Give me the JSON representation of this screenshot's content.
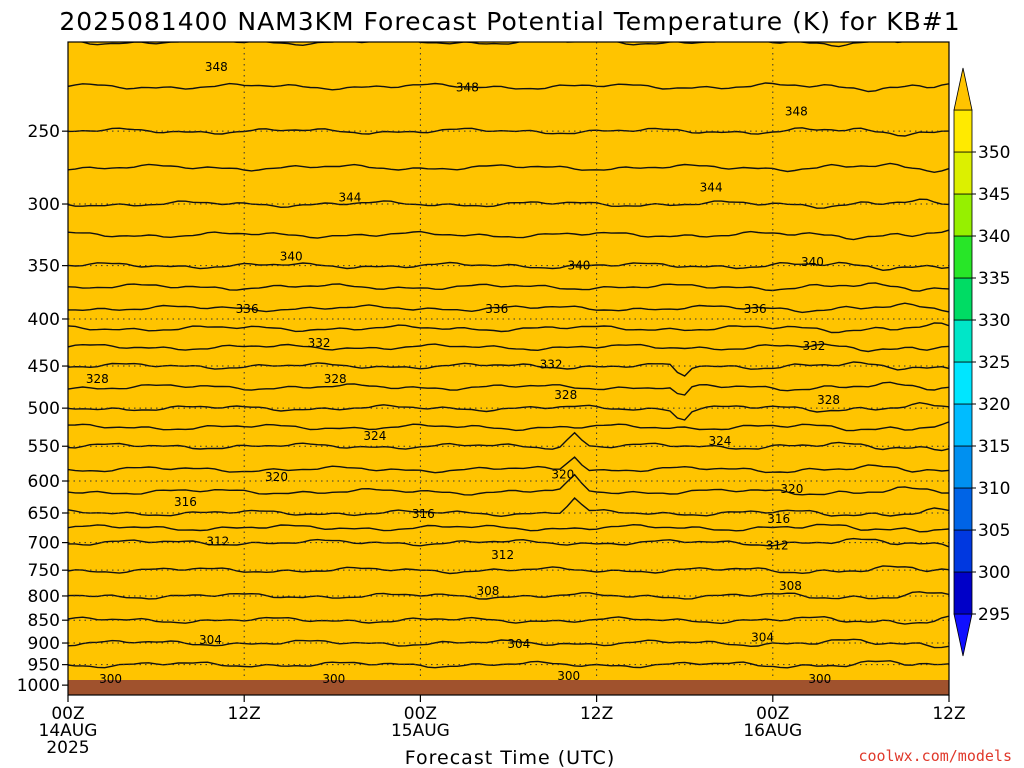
{
  "chart_data": {
    "type": "contour",
    "title": "2025081400 NAM3KM Forecast Potential Temperature (K) for KB#1",
    "xlabel": "Forecast Time (UTC)",
    "ylabel": "",
    "credit": "coolwx.com/models",
    "x_ticks": [
      {
        "hours": 0,
        "lines": [
          "00Z",
          "14AUG",
          "2025"
        ]
      },
      {
        "hours": 12,
        "lines": [
          "12Z"
        ]
      },
      {
        "hours": 24,
        "lines": [
          "00Z",
          "15AUG"
        ]
      },
      {
        "hours": 36,
        "lines": [
          "12Z"
        ]
      },
      {
        "hours": 48,
        "lines": [
          "00Z",
          "16AUG"
        ]
      },
      {
        "hours": 60,
        "lines": [
          "12Z"
        ]
      }
    ],
    "xlim": [
      0,
      60
    ],
    "y_scale": "log-pressure",
    "ylim": [
      1025,
      200
    ],
    "y_ticks": [
      250,
      300,
      350,
      400,
      450,
      500,
      550,
      600,
      650,
      700,
      750,
      800,
      850,
      900,
      950,
      1000
    ],
    "colorbar": {
      "levels": [
        295,
        300,
        305,
        310,
        315,
        320,
        325,
        330,
        335,
        340,
        345,
        350
      ],
      "labels": [
        295,
        300,
        305,
        310,
        315,
        320,
        325,
        330,
        335,
        340,
        345,
        350
      ],
      "colors": [
        "#1010ff",
        "#0000c8",
        "#0038e0",
        "#0064e6",
        "#0090f0",
        "#00bcff",
        "#00e6ff",
        "#00e6c8",
        "#00dc64",
        "#28e628",
        "#96f000",
        "#dcf000",
        "#ffea00",
        "#ffc400"
      ]
    },
    "profile": [
      {
        "pressure": 1000,
        "theta": 300
      },
      {
        "pressure": 950,
        "theta": 302
      },
      {
        "pressure": 900,
        "theta": 304
      },
      {
        "pressure": 850,
        "theta": 306
      },
      {
        "pressure": 800,
        "theta": 308
      },
      {
        "pressure": 750,
        "theta": 310
      },
      {
        "pressure": 700,
        "theta": 312
      },
      {
        "pressure": 650,
        "theta": 316
      },
      {
        "pressure": 600,
        "theta": 319
      },
      {
        "pressure": 550,
        "theta": 322
      },
      {
        "pressure": 500,
        "theta": 326
      },
      {
        "pressure": 450,
        "theta": 330
      },
      {
        "pressure": 400,
        "theta": 335
      },
      {
        "pressure": 350,
        "theta": 340
      },
      {
        "pressure": 300,
        "theta": 344
      },
      {
        "pressure": 250,
        "theta": 348
      },
      {
        "pressure": 200,
        "theta": 352
      }
    ],
    "contour_labels": [
      {
        "value": 348,
        "hours": 10.1,
        "pressure": 213
      },
      {
        "value": 348,
        "hours": 27.2,
        "pressure": 224
      },
      {
        "value": 348,
        "hours": 49.6,
        "pressure": 238
      },
      {
        "value": 344,
        "hours": 19.2,
        "pressure": 295
      },
      {
        "value": 344,
        "hours": 43.8,
        "pressure": 288
      },
      {
        "value": 340,
        "hours": 15.2,
        "pressure": 342
      },
      {
        "value": 340,
        "hours": 34.8,
        "pressure": 350
      },
      {
        "value": 340,
        "hours": 50.7,
        "pressure": 347
      },
      {
        "value": 336,
        "hours": 12.2,
        "pressure": 390
      },
      {
        "value": 336,
        "hours": 29.2,
        "pressure": 390
      },
      {
        "value": 336,
        "hours": 46.8,
        "pressure": 390
      },
      {
        "value": 332,
        "hours": 17.1,
        "pressure": 425
      },
      {
        "value": 332,
        "hours": 32.9,
        "pressure": 448
      },
      {
        "value": 332,
        "hours": 50.8,
        "pressure": 428
      },
      {
        "value": 328,
        "hours": 2.0,
        "pressure": 465
      },
      {
        "value": 328,
        "hours": 18.2,
        "pressure": 465
      },
      {
        "value": 328,
        "hours": 33.9,
        "pressure": 484
      },
      {
        "value": 328,
        "hours": 51.8,
        "pressure": 490
      },
      {
        "value": 324,
        "hours": 20.9,
        "pressure": 536
      },
      {
        "value": 324,
        "hours": 44.4,
        "pressure": 543
      },
      {
        "value": 320,
        "hours": 14.2,
        "pressure": 594
      },
      {
        "value": 320,
        "hours": 33.7,
        "pressure": 590
      },
      {
        "value": 320,
        "hours": 49.3,
        "pressure": 612
      },
      {
        "value": 316,
        "hours": 8.0,
        "pressure": 632
      },
      {
        "value": 316,
        "hours": 24.2,
        "pressure": 652
      },
      {
        "value": 316,
        "hours": 48.4,
        "pressure": 660
      },
      {
        "value": 312,
        "hours": 10.2,
        "pressure": 698
      },
      {
        "value": 312,
        "hours": 29.6,
        "pressure": 722
      },
      {
        "value": 312,
        "hours": 48.3,
        "pressure": 705
      },
      {
        "value": 308,
        "hours": 28.6,
        "pressure": 790
      },
      {
        "value": 308,
        "hours": 49.2,
        "pressure": 780
      },
      {
        "value": 304,
        "hours": 9.7,
        "pressure": 893
      },
      {
        "value": 304,
        "hours": 30.7,
        "pressure": 902
      },
      {
        "value": 304,
        "hours": 47.3,
        "pressure": 888
      },
      {
        "value": 300,
        "hours": 2.9,
        "pressure": 985
      },
      {
        "value": 300,
        "hours": 18.1,
        "pressure": 985
      },
      {
        "value": 300,
        "hours": 34.1,
        "pressure": 978
      },
      {
        "value": 300,
        "hours": 51.2,
        "pressure": 985
      }
    ]
  }
}
